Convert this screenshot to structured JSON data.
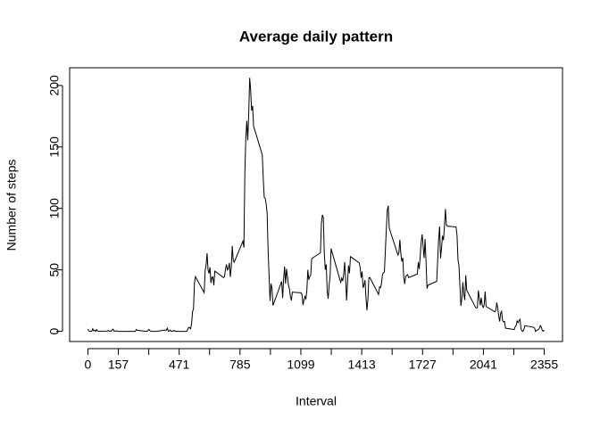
{
  "chart_data": {
    "type": "line",
    "title": "Average daily pattern",
    "x_label": "Interval",
    "y_label": "Number of steps",
    "color": "#000000",
    "x": [
      0,
      5,
      10,
      15,
      20,
      25,
      30,
      35,
      40,
      45,
      50,
      55,
      100,
      105,
      110,
      115,
      120,
      125,
      130,
      135,
      140,
      145,
      150,
      155,
      200,
      205,
      210,
      215,
      220,
      225,
      230,
      235,
      240,
      245,
      250,
      255,
      300,
      305,
      310,
      315,
      320,
      325,
      330,
      335,
      340,
      345,
      350,
      355,
      400,
      405,
      410,
      415,
      420,
      425,
      430,
      435,
      440,
      445,
      450,
      455,
      500,
      505,
      510,
      515,
      520,
      525,
      530,
      535,
      540,
      545,
      550,
      555,
      600,
      605,
      610,
      615,
      620,
      625,
      630,
      635,
      640,
      645,
      650,
      655,
      700,
      705,
      710,
      715,
      720,
      725,
      730,
      735,
      740,
      745,
      750,
      755,
      800,
      805,
      810,
      815,
      820,
      825,
      830,
      835,
      840,
      845,
      850,
      855,
      900,
      905,
      910,
      915,
      920,
      925,
      930,
      935,
      940,
      945,
      950,
      955,
      1000,
      1005,
      1010,
      1015,
      1020,
      1025,
      1030,
      1035,
      1040,
      1045,
      1050,
      1055,
      1100,
      1105,
      1110,
      1115,
      1120,
      1125,
      1130,
      1135,
      1140,
      1145,
      1150,
      1155,
      1200,
      1205,
      1210,
      1215,
      1220,
      1225,
      1230,
      1235,
      1240,
      1245,
      1250,
      1255,
      1300,
      1305,
      1310,
      1315,
      1320,
      1325,
      1330,
      1335,
      1340,
      1345,
      1350,
      1355,
      1400,
      1405,
      1410,
      1415,
      1420,
      1425,
      1430,
      1435,
      1440,
      1445,
      1450,
      1455,
      1500,
      1505,
      1510,
      1515,
      1520,
      1525,
      1530,
      1535,
      1540,
      1545,
      1550,
      1555,
      1600,
      1605,
      1610,
      1615,
      1620,
      1625,
      1630,
      1635,
      1640,
      1645,
      1650,
      1655,
      1700,
      1705,
      1710,
      1715,
      1720,
      1725,
      1730,
      1735,
      1740,
      1745,
      1750,
      1755,
      1800,
      1805,
      1810,
      1815,
      1820,
      1825,
      1830,
      1835,
      1840,
      1845,
      1850,
      1855,
      1900,
      1905,
      1910,
      1915,
      1920,
      1925,
      1930,
      1935,
      1940,
      1945,
      1950,
      1955,
      2000,
      2005,
      2010,
      2015,
      2020,
      2025,
      2030,
      2035,
      2040,
      2045,
      2050,
      2055,
      2100,
      2105,
      2110,
      2115,
      2120,
      2125,
      2130,
      2135,
      2140,
      2145,
      2150,
      2155,
      2200,
      2205,
      2210,
      2215,
      2220,
      2225,
      2230,
      2235,
      2240,
      2245,
      2250,
      2255,
      2300,
      2305,
      2310,
      2315,
      2320,
      2325,
      2330,
      2335,
      2340,
      2345,
      2350,
      2355
    ],
    "values": [
      1.7,
      0.3,
      0.1,
      0.2,
      0.1,
      2.1,
      0.5,
      0.9,
      0,
      1.5,
      0.3,
      0.1,
      0.3,
      0.7,
      0.2,
      0.3,
      0,
      1.1,
      1.8,
      0.2,
      0.2,
      0.4,
      0.3,
      0,
      0,
      0,
      0,
      0,
      0,
      0,
      0,
      0,
      0,
      0,
      1.5,
      0.9,
      0,
      0.2,
      0.6,
      1.6,
      0.6,
      0,
      0,
      0,
      0,
      0,
      0,
      0,
      1.2,
      0.9,
      2.6,
      0,
      0.3,
      1.1,
      0,
      0,
      0.3,
      0.9,
      0,
      0,
      0,
      0,
      0,
      1.5,
      3.3,
      3,
      2.1,
      6.1,
      16,
      18.3,
      39.5,
      44.5,
      31.5,
      49.3,
      53.8,
      63.5,
      50,
      47.1,
      52.2,
      39.3,
      44,
      44.2,
      37.4,
      49,
      43.8,
      44.4,
      50.5,
      54.5,
      49.9,
      51,
      55.7,
      44.3,
      52.3,
      69.5,
      57.8,
      56.2,
      73.4,
      68.2,
      129.4,
      157.5,
      171.2,
      155.4,
      177.3,
      206.2,
      195.9,
      179.6,
      183.4,
      167,
      143.5,
      124,
      109.1,
      108.1,
      103.7,
      96,
      66.2,
      45.2,
      24.8,
      38.8,
      35,
      21.1,
      40.6,
      27,
      42.4,
      52.7,
      38.9,
      50.8,
      44.3,
      37.4,
      34.7,
      28.3,
      25.1,
      31.9,
      31.4,
      29.7,
      21.3,
      25.5,
      28.4,
      26.5,
      33.4,
      50,
      42,
      44.6,
      46,
      59.2,
      63.9,
      87.7,
      94.8,
      92.8,
      63.4,
      50.2,
      54.5,
      32.4,
      26.5,
      37.7,
      45.1,
      67.3,
      42.3,
      39.9,
      43.3,
      41,
      46.2,
      56.4,
      42.8,
      25.1,
      40,
      53.5,
      47.3,
      60.8,
      55.8,
      52,
      43.6,
      48.7,
      35.5,
      37.5,
      41.8,
      27.5,
      17.1,
      26.1,
      43.6,
      43.8,
      30,
      36.1,
      35.5,
      38.8,
      46,
      47.7,
      48.1,
      65.3,
      82.9,
      98.7,
      102.1,
      84,
      62.1,
      64.1,
      74.5,
      63.2,
      56.9,
      59.8,
      43.9,
      38.6,
      44.7,
      45.5,
      46.2,
      43.7,
      46.6,
      56.3,
      50.7,
      61.2,
      72.7,
      78.9,
      68.9,
      59.7,
      75.1,
      56.5,
      34.8,
      37.5,
      40.7,
      58,
      74.7,
      85.3,
      59.3,
      67.8,
      77.7,
      74.2,
      85.3,
      99.5,
      86.6,
      85.6,
      84.9,
      77.8,
      58,
      53.4,
      36.3,
      20.7,
      27.4,
      40,
      30.2,
      25.5,
      45.7,
      33.5,
      19.6,
      19,
      19.3,
      33.3,
      26.8,
      21.2,
      27.3,
      21.3,
      19.5,
      21.3,
      32.3,
      20.2,
      15.9,
      17.2,
      23.5,
      19.2,
      12.5,
      8,
      14.7,
      16.3,
      8.7,
      7.8,
      8.1,
      2.6,
      1.5,
      3.7,
      4.8,
      8.5,
      7.1,
      8.7,
      9.8,
      2.2,
      0.3,
      0.1,
      1.6,
      4.6,
      3.3,
      2.8,
      0,
      0.8,
      1,
      1.6,
      2.6,
      4.7,
      3.3,
      0.6,
      0.2,
      1.1
    ],
    "xlim": [
      -94.2,
      2449.2
    ],
    "xticks": [
      0,
      157,
      {
        "value": 314,
        "label": null
      },
      471,
      {
        "value": 628,
        "label": null
      },
      785,
      {
        "value": 942,
        "label": null
      },
      1099,
      {
        "value": 1256,
        "label": null
      },
      1413,
      {
        "value": 1570,
        "label": null
      },
      1727,
      {
        "value": 1884,
        "label": null
      },
      2041,
      {
        "value": 2198,
        "label": null
      },
      2355
    ],
    "ylim": [
      -8.25,
      214.4
    ],
    "yticks": [
      0,
      50,
      100,
      150,
      200
    ]
  }
}
